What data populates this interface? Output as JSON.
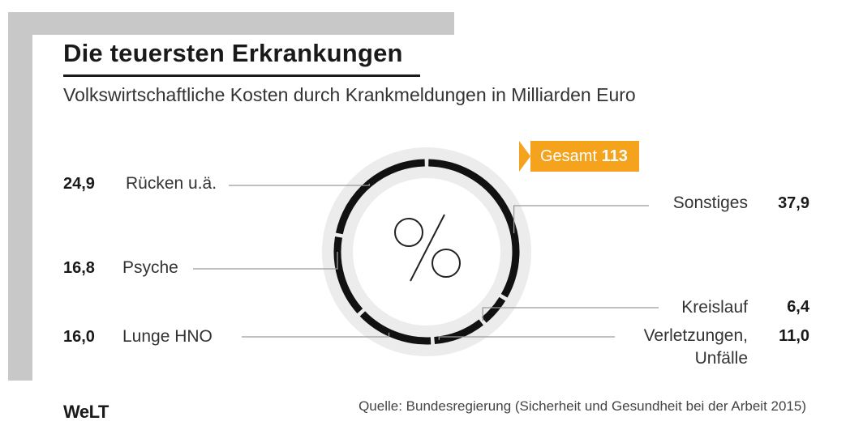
{
  "header": {
    "title": "Die teuersten Erkrankungen",
    "subtitle": "Volkswirtschaftliche Kosten durch Krankmeldungen in Milliarden Euro"
  },
  "total": {
    "label": "Gesamt",
    "value": "113"
  },
  "center_symbol": "%",
  "footer": {
    "logo": "WeLT",
    "source": "Quelle: Bundesregierung (Sicherheit und Gesundheit bei der Arbeit 2015)"
  },
  "labels": {
    "ruecken": {
      "value": "24,9",
      "name": "Rücken u.ä."
    },
    "psyche": {
      "value": "16,8",
      "name": "Psyche"
    },
    "lunge": {
      "value": "16,0",
      "name": "Lunge HNO"
    },
    "sonstiges": {
      "value": "37,9",
      "name": "Sonstiges"
    },
    "kreislauf": {
      "value": "6,4",
      "name": "Kreislauf"
    },
    "verletzungen": {
      "value": "11,0",
      "name": "Verletzungen, Unfälle"
    }
  },
  "chart_data": {
    "type": "pie",
    "title": "Die teuersten Erkrankungen",
    "subtitle": "Volkswirtschaftliche Kosten durch Krankmeldungen in Milliarden Euro",
    "total": 113,
    "categories": [
      "Sonstiges",
      "Kreislauf",
      "Verletzungen, Unfälle",
      "Lunge HNO",
      "Psyche",
      "Rücken u.ä."
    ],
    "values": [
      37.9,
      6.4,
      11.0,
      16.0,
      16.8,
      24.9
    ],
    "colors": {
      "ring": "#111111",
      "track": "#ececec",
      "badge": "#f5a21c",
      "leader": "#9a9a9a"
    }
  }
}
